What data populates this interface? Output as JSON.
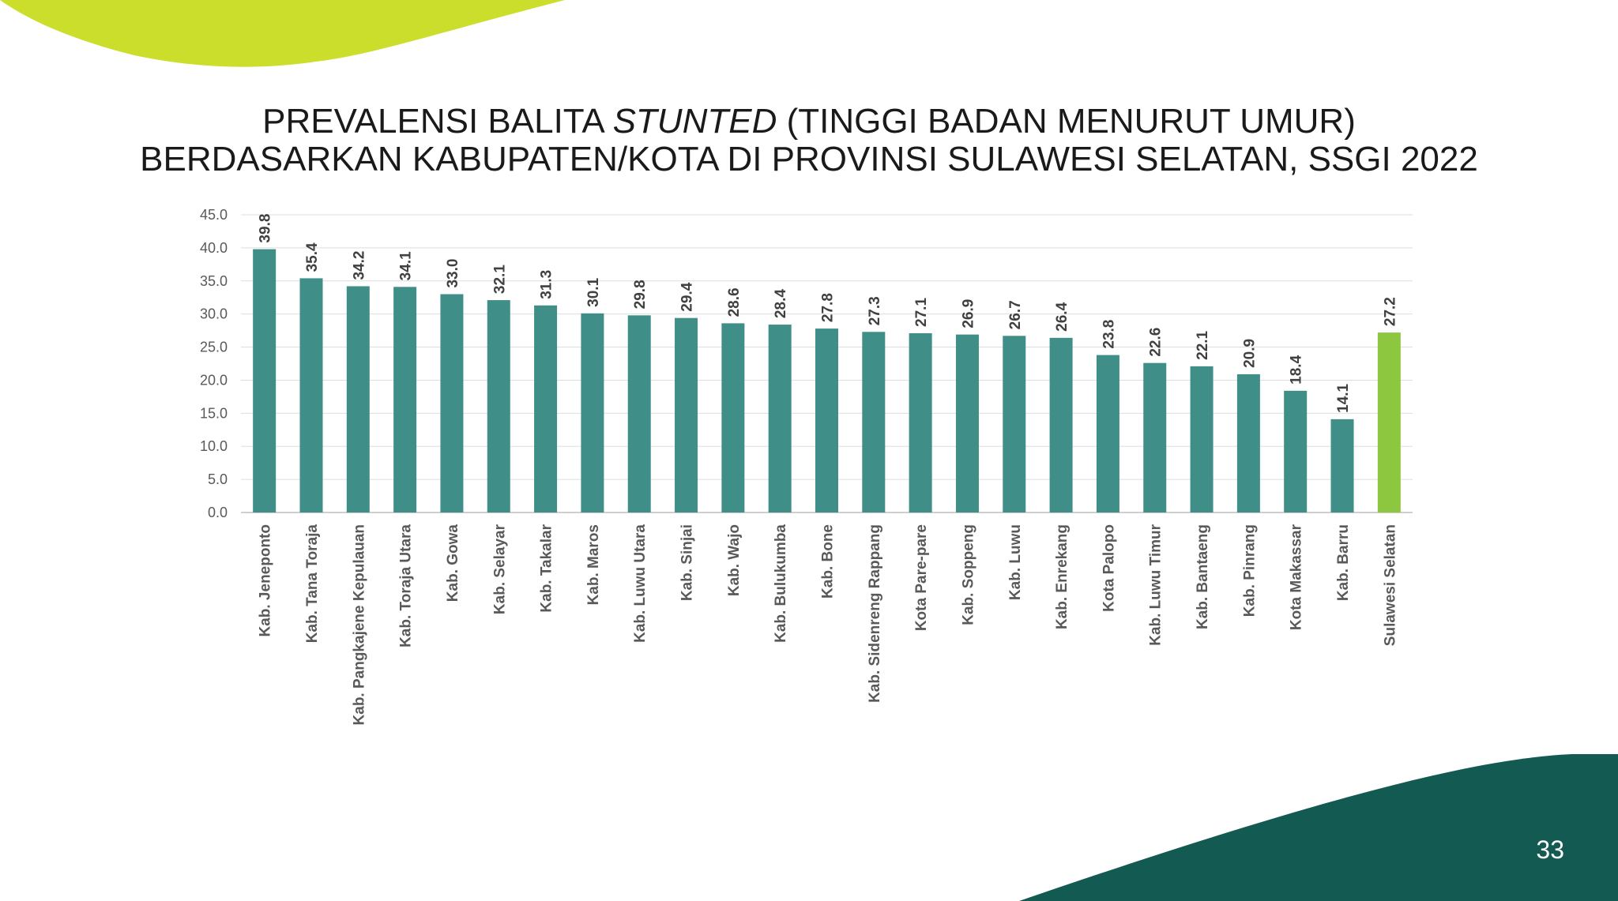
{
  "slide": {
    "title_line1_prefix": "PREVALENSI BALITA ",
    "title_line1_italic": "STUNTED",
    "title_line1_suffix": " (TINGGI BADAN MENURUT UMUR)",
    "title_line2": "BERDASARKAN KABUPATEN/KOTA DI PROVINSI SULAWESI SELATAN, SSGI 2022",
    "page_number": "33"
  },
  "colors": {
    "bar": "#3f8f88",
    "highlight_bar": "#8dc63f",
    "accent_top": "#cbde2b",
    "accent_bottom": "#135a52"
  },
  "chart_data": {
    "type": "bar",
    "categories": [
      "Kab. Jeneponto",
      "Kab. Tana Toraja",
      "Kab. Pangkajene Kepulauan",
      "Kab. Toraja Utara",
      "Kab. Gowa",
      "Kab. Selayar",
      "Kab. Takalar",
      "Kab. Maros",
      "Kab. Luwu Utara",
      "Kab. Sinjai",
      "Kab. Wajo",
      "Kab. Bulukumba",
      "Kab. Bone",
      "Kab. Sidenreng Rappang",
      "Kota Pare-pare",
      "Kab. Soppeng",
      "Kab. Luwu",
      "Kab. Enrekang",
      "Kota Palopo",
      "Kab. Luwu Timur",
      "Kab. Bantaeng",
      "Kab. Pinrang",
      "Kota Makassar",
      "Kab. Barru",
      "Sulawesi Selatan"
    ],
    "values": [
      39.8,
      35.4,
      34.2,
      34.1,
      33.0,
      32.1,
      31.3,
      30.1,
      29.8,
      29.4,
      28.6,
      28.4,
      27.8,
      27.3,
      27.1,
      26.9,
      26.7,
      26.4,
      23.8,
      22.6,
      22.1,
      20.9,
      18.4,
      14.1,
      27.2
    ],
    "value_labels": [
      "39.8",
      "35.4",
      "34.2",
      "34.1",
      "33.0",
      "32.1",
      "31.3",
      "30.1",
      "29.8",
      "29.4",
      "28.6",
      "28.4",
      "27.8",
      "27.3",
      "27.1",
      "26.9",
      "26.7",
      "26.4",
      "23.8",
      "22.6",
      "22.1",
      "20.9",
      "18.4",
      "14.1",
      "27.2"
    ],
    "highlight_category": "Sulawesi Selatan",
    "ylim": [
      0,
      45
    ],
    "yticks": [
      "0.0",
      "5.0",
      "10.0",
      "15.0",
      "20.0",
      "25.0",
      "30.0",
      "35.0",
      "40.0",
      "45.0"
    ],
    "grid": true,
    "legend": "none"
  }
}
